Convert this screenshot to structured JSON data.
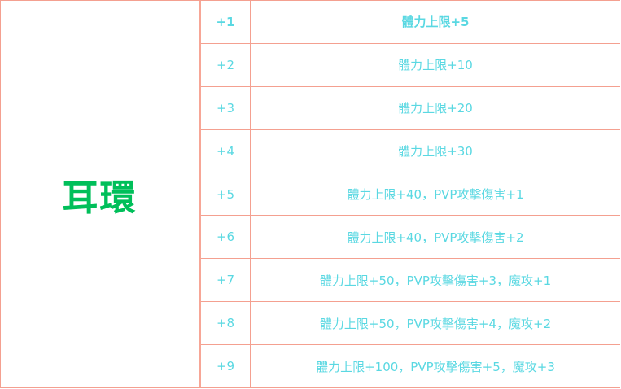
{
  "item_name": "耳環",
  "colors": {
    "title": "#00bf5a",
    "text": "#5ad8e2",
    "border": "#f4a090"
  },
  "rows": [
    {
      "level": "+1",
      "bonus": "體力上限+5"
    },
    {
      "level": "+2",
      "bonus": "體力上限+10"
    },
    {
      "level": "+3",
      "bonus": "體力上限+20"
    },
    {
      "level": "+4",
      "bonus": "體力上限+30"
    },
    {
      "level": "+5",
      "bonus": "體力上限+40，PVP攻擊傷害+1"
    },
    {
      "level": "+6",
      "bonus": "體力上限+40，PVP攻擊傷害+2"
    },
    {
      "level": "+7",
      "bonus": "體力上限+50，PVP攻擊傷害+3，魔攻+1"
    },
    {
      "level": "+8",
      "bonus": "體力上限+50，PVP攻擊傷害+4，魔攻+2"
    },
    {
      "level": "+9",
      "bonus": "體力上限+100，PVP攻擊傷害+5，魔攻+3"
    }
  ]
}
